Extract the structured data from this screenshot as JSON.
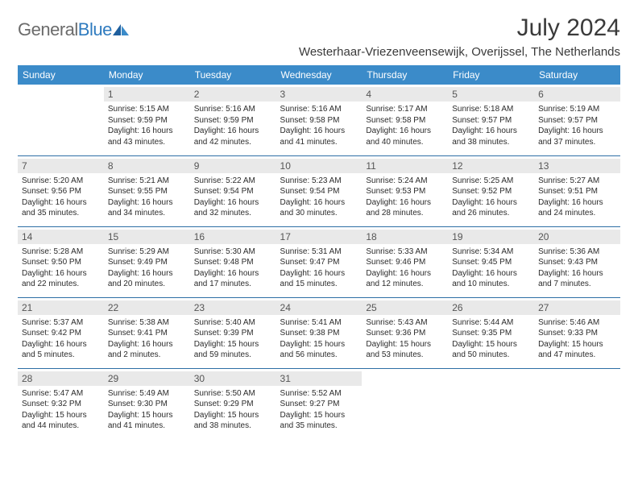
{
  "brand": {
    "part1": "General",
    "part2": "Blue"
  },
  "title": "July 2024",
  "location": "Westerhaar-Vriezenveensewijk, Overijssel, The Netherlands",
  "colors": {
    "header_bg": "#3b8bc9",
    "header_text": "#ffffff",
    "daynum_bg": "#e9e9e9",
    "row_divider": "#2d6ea5",
    "body_text": "#2b2b2b",
    "logo_gray": "#6b6b6b",
    "logo_blue": "#2f7bbf"
  },
  "fonts": {
    "title_pt": 30,
    "location_pt": 15,
    "th_pt": 12,
    "cell_pt": 10
  },
  "weekdays": [
    "Sunday",
    "Monday",
    "Tuesday",
    "Wednesday",
    "Thursday",
    "Friday",
    "Saturday"
  ],
  "weeks": [
    [
      {
        "n": "",
        "sr": "",
        "ss": "",
        "dl": ""
      },
      {
        "n": "1",
        "sr": "Sunrise: 5:15 AM",
        "ss": "Sunset: 9:59 PM",
        "dl": "Daylight: 16 hours and 43 minutes."
      },
      {
        "n": "2",
        "sr": "Sunrise: 5:16 AM",
        "ss": "Sunset: 9:59 PM",
        "dl": "Daylight: 16 hours and 42 minutes."
      },
      {
        "n": "3",
        "sr": "Sunrise: 5:16 AM",
        "ss": "Sunset: 9:58 PM",
        "dl": "Daylight: 16 hours and 41 minutes."
      },
      {
        "n": "4",
        "sr": "Sunrise: 5:17 AM",
        "ss": "Sunset: 9:58 PM",
        "dl": "Daylight: 16 hours and 40 minutes."
      },
      {
        "n": "5",
        "sr": "Sunrise: 5:18 AM",
        "ss": "Sunset: 9:57 PM",
        "dl": "Daylight: 16 hours and 38 minutes."
      },
      {
        "n": "6",
        "sr": "Sunrise: 5:19 AM",
        "ss": "Sunset: 9:57 PM",
        "dl": "Daylight: 16 hours and 37 minutes."
      }
    ],
    [
      {
        "n": "7",
        "sr": "Sunrise: 5:20 AM",
        "ss": "Sunset: 9:56 PM",
        "dl": "Daylight: 16 hours and 35 minutes."
      },
      {
        "n": "8",
        "sr": "Sunrise: 5:21 AM",
        "ss": "Sunset: 9:55 PM",
        "dl": "Daylight: 16 hours and 34 minutes."
      },
      {
        "n": "9",
        "sr": "Sunrise: 5:22 AM",
        "ss": "Sunset: 9:54 PM",
        "dl": "Daylight: 16 hours and 32 minutes."
      },
      {
        "n": "10",
        "sr": "Sunrise: 5:23 AM",
        "ss": "Sunset: 9:54 PM",
        "dl": "Daylight: 16 hours and 30 minutes."
      },
      {
        "n": "11",
        "sr": "Sunrise: 5:24 AM",
        "ss": "Sunset: 9:53 PM",
        "dl": "Daylight: 16 hours and 28 minutes."
      },
      {
        "n": "12",
        "sr": "Sunrise: 5:25 AM",
        "ss": "Sunset: 9:52 PM",
        "dl": "Daylight: 16 hours and 26 minutes."
      },
      {
        "n": "13",
        "sr": "Sunrise: 5:27 AM",
        "ss": "Sunset: 9:51 PM",
        "dl": "Daylight: 16 hours and 24 minutes."
      }
    ],
    [
      {
        "n": "14",
        "sr": "Sunrise: 5:28 AM",
        "ss": "Sunset: 9:50 PM",
        "dl": "Daylight: 16 hours and 22 minutes."
      },
      {
        "n": "15",
        "sr": "Sunrise: 5:29 AM",
        "ss": "Sunset: 9:49 PM",
        "dl": "Daylight: 16 hours and 20 minutes."
      },
      {
        "n": "16",
        "sr": "Sunrise: 5:30 AM",
        "ss": "Sunset: 9:48 PM",
        "dl": "Daylight: 16 hours and 17 minutes."
      },
      {
        "n": "17",
        "sr": "Sunrise: 5:31 AM",
        "ss": "Sunset: 9:47 PM",
        "dl": "Daylight: 16 hours and 15 minutes."
      },
      {
        "n": "18",
        "sr": "Sunrise: 5:33 AM",
        "ss": "Sunset: 9:46 PM",
        "dl": "Daylight: 16 hours and 12 minutes."
      },
      {
        "n": "19",
        "sr": "Sunrise: 5:34 AM",
        "ss": "Sunset: 9:45 PM",
        "dl": "Daylight: 16 hours and 10 minutes."
      },
      {
        "n": "20",
        "sr": "Sunrise: 5:36 AM",
        "ss": "Sunset: 9:43 PM",
        "dl": "Daylight: 16 hours and 7 minutes."
      }
    ],
    [
      {
        "n": "21",
        "sr": "Sunrise: 5:37 AM",
        "ss": "Sunset: 9:42 PM",
        "dl": "Daylight: 16 hours and 5 minutes."
      },
      {
        "n": "22",
        "sr": "Sunrise: 5:38 AM",
        "ss": "Sunset: 9:41 PM",
        "dl": "Daylight: 16 hours and 2 minutes."
      },
      {
        "n": "23",
        "sr": "Sunrise: 5:40 AM",
        "ss": "Sunset: 9:39 PM",
        "dl": "Daylight: 15 hours and 59 minutes."
      },
      {
        "n": "24",
        "sr": "Sunrise: 5:41 AM",
        "ss": "Sunset: 9:38 PM",
        "dl": "Daylight: 15 hours and 56 minutes."
      },
      {
        "n": "25",
        "sr": "Sunrise: 5:43 AM",
        "ss": "Sunset: 9:36 PM",
        "dl": "Daylight: 15 hours and 53 minutes."
      },
      {
        "n": "26",
        "sr": "Sunrise: 5:44 AM",
        "ss": "Sunset: 9:35 PM",
        "dl": "Daylight: 15 hours and 50 minutes."
      },
      {
        "n": "27",
        "sr": "Sunrise: 5:46 AM",
        "ss": "Sunset: 9:33 PM",
        "dl": "Daylight: 15 hours and 47 minutes."
      }
    ],
    [
      {
        "n": "28",
        "sr": "Sunrise: 5:47 AM",
        "ss": "Sunset: 9:32 PM",
        "dl": "Daylight: 15 hours and 44 minutes."
      },
      {
        "n": "29",
        "sr": "Sunrise: 5:49 AM",
        "ss": "Sunset: 9:30 PM",
        "dl": "Daylight: 15 hours and 41 minutes."
      },
      {
        "n": "30",
        "sr": "Sunrise: 5:50 AM",
        "ss": "Sunset: 9:29 PM",
        "dl": "Daylight: 15 hours and 38 minutes."
      },
      {
        "n": "31",
        "sr": "Sunrise: 5:52 AM",
        "ss": "Sunset: 9:27 PM",
        "dl": "Daylight: 15 hours and 35 minutes."
      },
      {
        "n": "",
        "sr": "",
        "ss": "",
        "dl": ""
      },
      {
        "n": "",
        "sr": "",
        "ss": "",
        "dl": ""
      },
      {
        "n": "",
        "sr": "",
        "ss": "",
        "dl": ""
      }
    ]
  ]
}
